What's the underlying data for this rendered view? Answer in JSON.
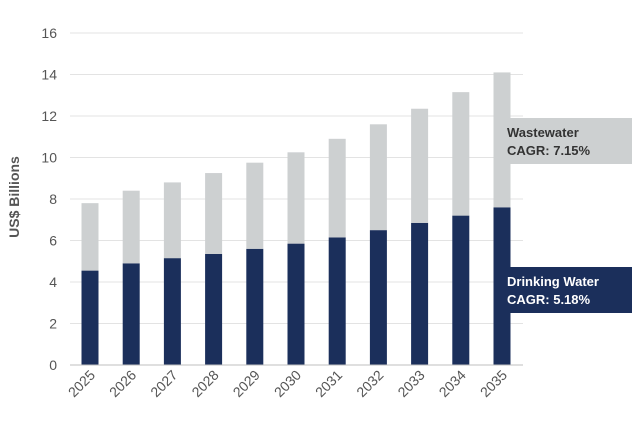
{
  "chart_data": {
    "type": "bar",
    "stacked": true,
    "categories": [
      "2025",
      "2026",
      "2027",
      "2028",
      "2029",
      "2030",
      "2031",
      "2032",
      "2033",
      "2034",
      "2035"
    ],
    "series": [
      {
        "key": "drinking",
        "color": "#1b2f5b",
        "values": [
          4.55,
          4.9,
          5.15,
          5.35,
          5.6,
          5.85,
          6.15,
          6.5,
          6.85,
          7.2,
          7.6
        ]
      },
      {
        "key": "wastewater",
        "color": "#cdd0d1",
        "values": [
          3.25,
          3.5,
          3.65,
          3.9,
          4.15,
          4.4,
          4.75,
          5.1,
          5.5,
          5.95,
          6.5
        ]
      }
    ],
    "ylabel": "US$ Billions",
    "ylim": [
      0,
      16
    ],
    "yticks": [
      0,
      2,
      4,
      6,
      8,
      10,
      12,
      14,
      16
    ],
    "grid": true,
    "annotations": [
      {
        "series": "wastewater",
        "line1": "Wastewater",
        "line2": "CAGR: 7.15%",
        "bg": "#cdd0d1",
        "fg": "#333333"
      },
      {
        "series": "drinking",
        "line1": "Drinking Water",
        "line2": "CAGR: 5.18%",
        "bg": "#1b2f5b",
        "fg": "#ffffff"
      }
    ]
  }
}
